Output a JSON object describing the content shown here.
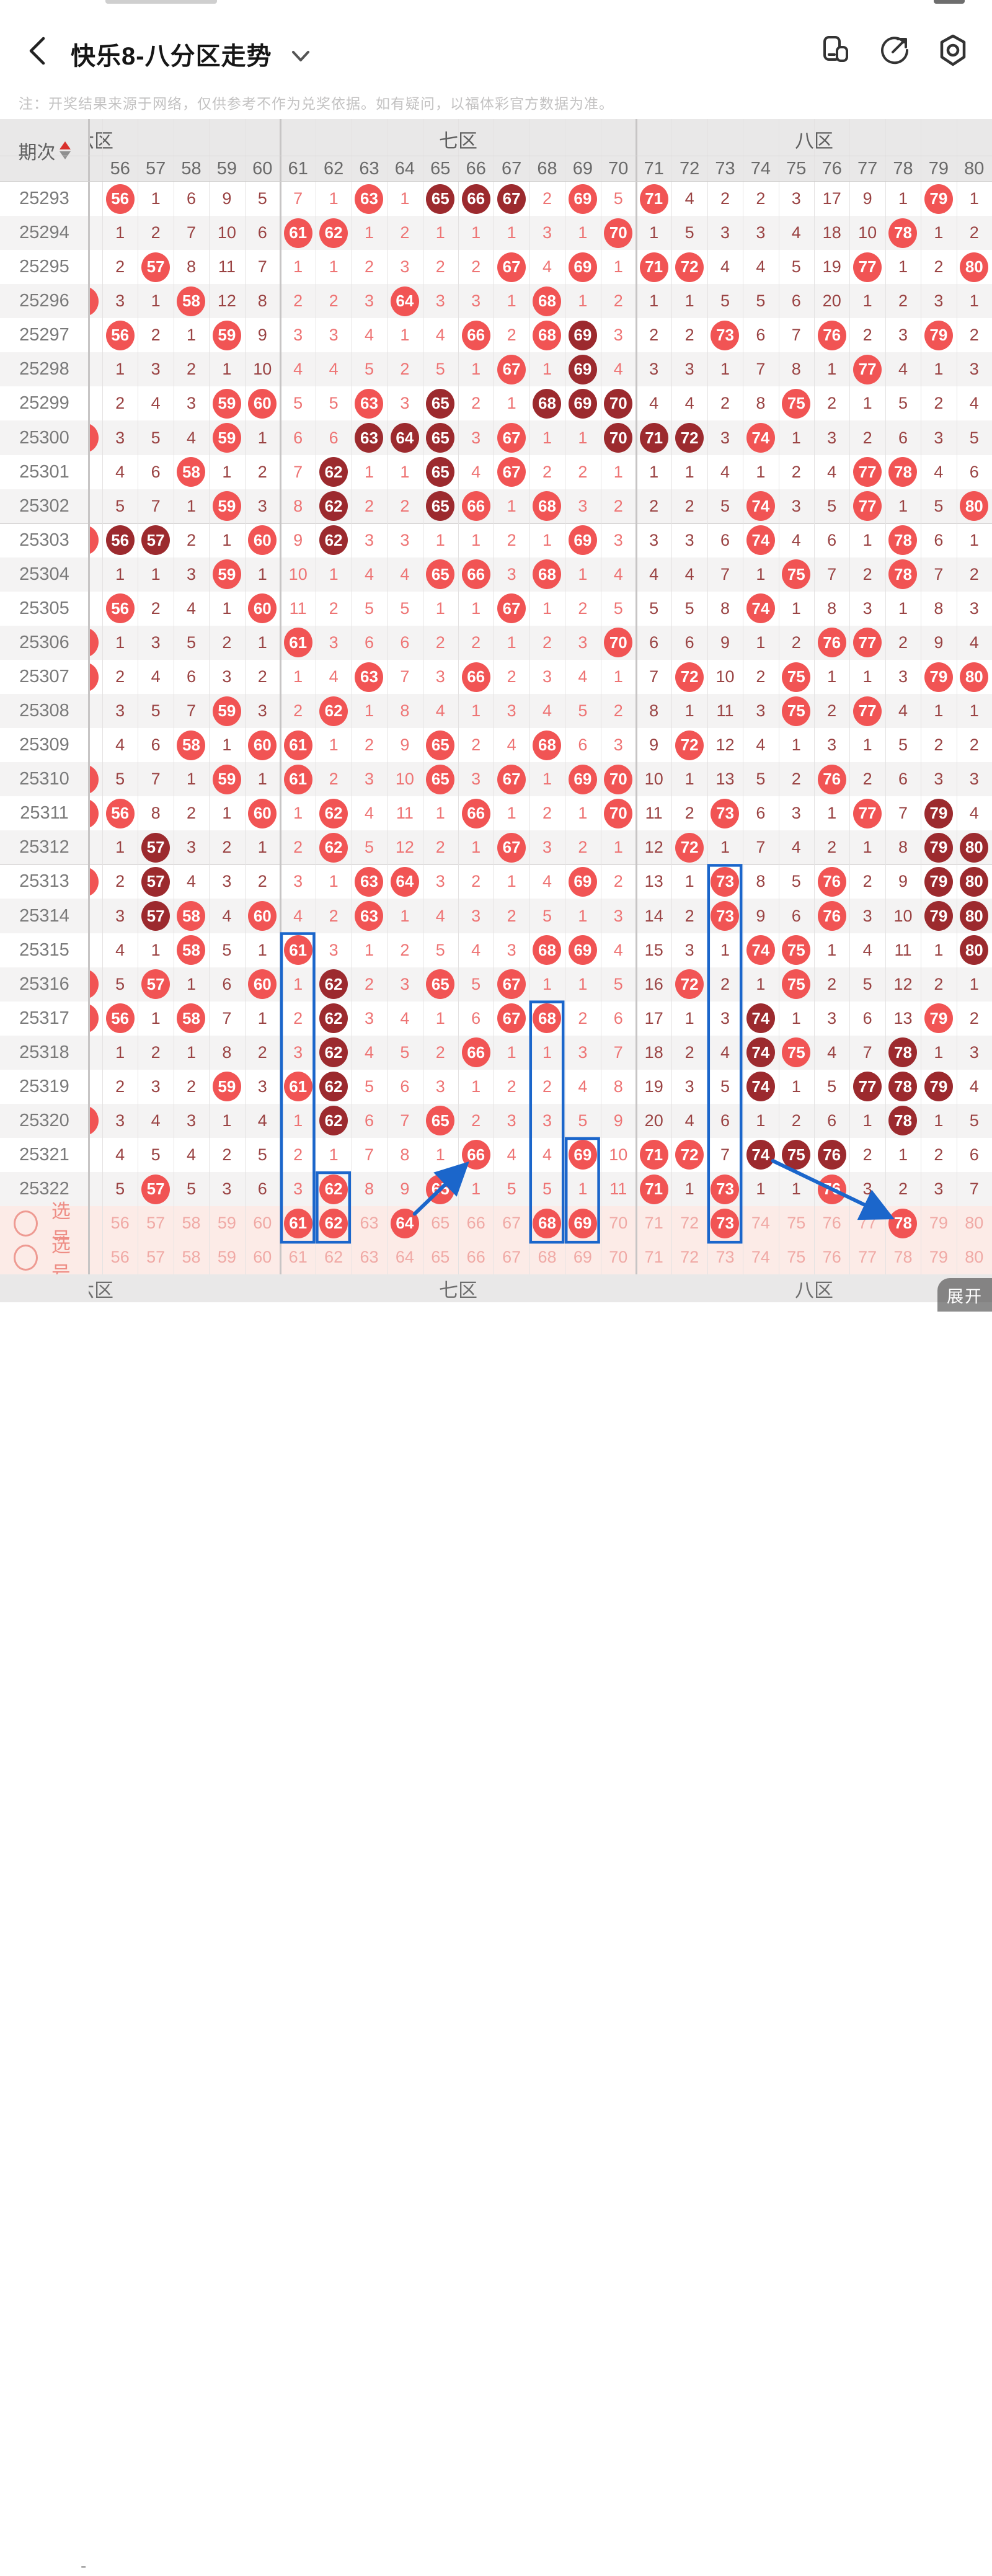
{
  "app": {
    "title": "快乐8-八分区走势",
    "note": "注：开奖结果来源于网络，仅供参考不作为兑奖依据。如有疑问，以福体彩官方数据为准。",
    "expand_label": "展开",
    "icons": {
      "left": "back-chevron",
      "title_caret": "chevron-down",
      "right": [
        "floating-window-icon",
        "share-icon",
        "settings-icon"
      ]
    }
  },
  "colors": {
    "ball_bright": "#f15454",
    "ball_dark": "#9c2a2e",
    "miss_dark_zone": "#9a4343",
    "miss_bright_zone": "#ee7474",
    "annotation_blue": "#1b66cb",
    "selection_pink_bg": "#fcebe7",
    "selection_text": "#ee8d85",
    "header_bg": "#e9e8e8",
    "sort_up_red": "#d9302c"
  },
  "table": {
    "period_header": "期次",
    "columns": [
      56,
      57,
      58,
      59,
      60,
      61,
      62,
      63,
      64,
      65,
      66,
      67,
      68,
      69,
      70,
      71,
      72,
      73,
      74,
      75,
      76,
      77,
      78,
      79,
      80
    ],
    "zones": [
      {
        "label": "六区",
        "from": 56,
        "to": 60,
        "clipped": true
      },
      {
        "label": "七区",
        "from": 61,
        "to": 70,
        "clipped": false
      },
      {
        "label": "八区",
        "from": 71,
        "to": 80,
        "clipped": false
      }
    ],
    "rows": [
      {
        "period": "25293",
        "sliver": false,
        "cells": [
          "B56",
          "1",
          "6",
          "9",
          "5",
          "7",
          "1",
          "B63",
          "1",
          "D65",
          "D66",
          "D67",
          "2",
          "B69",
          "5",
          "B71",
          "4",
          "2",
          "2",
          "3",
          "17",
          "9",
          "1",
          "B79",
          "1"
        ]
      },
      {
        "period": "25294",
        "sliver": false,
        "cells": [
          "1",
          "2",
          "7",
          "10",
          "6",
          "B61",
          "B62",
          "1",
          "2",
          "1",
          "1",
          "1",
          "3",
          "1",
          "B70",
          "1",
          "5",
          "3",
          "3",
          "4",
          "18",
          "10",
          "B78",
          "1",
          "2"
        ]
      },
      {
        "period": "25295",
        "sliver": false,
        "cells": [
          "2",
          "B57",
          "8",
          "11",
          "7",
          "1",
          "1",
          "2",
          "3",
          "2",
          "2",
          "B67",
          "4",
          "B69",
          "1",
          "B71",
          "B72",
          "4",
          "4",
          "5",
          "19",
          "B77",
          "1",
          "2",
          "B80"
        ]
      },
      {
        "period": "25296",
        "sliver": true,
        "cells": [
          "3",
          "1",
          "B58",
          "12",
          "8",
          "2",
          "2",
          "3",
          "B64",
          "3",
          "3",
          "1",
          "B68",
          "1",
          "2",
          "1",
          "1",
          "5",
          "5",
          "6",
          "20",
          "1",
          "2",
          "3",
          "1"
        ]
      },
      {
        "period": "25297",
        "sliver": false,
        "cells": [
          "B56",
          "2",
          "1",
          "B59",
          "9",
          "3",
          "3",
          "4",
          "1",
          "4",
          "B66",
          "2",
          "B68",
          "D69",
          "3",
          "2",
          "2",
          "B73",
          "6",
          "7",
          "B76",
          "2",
          "3",
          "B79",
          "2"
        ]
      },
      {
        "period": "25298",
        "sliver": false,
        "cells": [
          "1",
          "3",
          "2",
          "1",
          "10",
          "4",
          "4",
          "5",
          "2",
          "5",
          "1",
          "B67",
          "1",
          "D69",
          "4",
          "3",
          "3",
          "1",
          "7",
          "8",
          "1",
          "B77",
          "4",
          "1",
          "3"
        ]
      },
      {
        "period": "25299",
        "sliver": false,
        "cells": [
          "2",
          "4",
          "3",
          "B59",
          "B60",
          "5",
          "5",
          "B63",
          "3",
          "D65",
          "2",
          "1",
          "D68",
          "D69",
          "D70",
          "4",
          "4",
          "2",
          "8",
          "B75",
          "2",
          "1",
          "5",
          "2",
          "4"
        ]
      },
      {
        "period": "25300",
        "sliver": true,
        "cells": [
          "3",
          "5",
          "4",
          "B59",
          "1",
          "6",
          "6",
          "D63",
          "D64",
          "D65",
          "3",
          "B67",
          "1",
          "1",
          "D70",
          "D71",
          "D72",
          "3",
          "B74",
          "1",
          "3",
          "2",
          "6",
          "3",
          "5"
        ]
      },
      {
        "period": "25301",
        "sliver": false,
        "cells": [
          "4",
          "6",
          "B58",
          "1",
          "2",
          "7",
          "D62",
          "1",
          "1",
          "D65",
          "4",
          "B67",
          "2",
          "2",
          "1",
          "1",
          "1",
          "4",
          "1",
          "2",
          "4",
          "B77",
          "B78",
          "4",
          "6"
        ]
      },
      {
        "period": "25302",
        "sliver": false,
        "cells": [
          "5",
          "7",
          "1",
          "B59",
          "3",
          "8",
          "D62",
          "2",
          "2",
          "D65",
          "B66",
          "1",
          "B68",
          "3",
          "2",
          "2",
          "2",
          "5",
          "B74",
          "3",
          "5",
          "B77",
          "1",
          "5",
          "B80"
        ]
      },
      {
        "period": "25303",
        "sliver": true,
        "cells": [
          "D56",
          "D57",
          "2",
          "1",
          "B60",
          "9",
          "D62",
          "3",
          "3",
          "1",
          "1",
          "2",
          "1",
          "B69",
          "3",
          "3",
          "3",
          "6",
          "B74",
          "4",
          "6",
          "1",
          "B78",
          "6",
          "1"
        ]
      },
      {
        "period": "25304",
        "sliver": false,
        "cells": [
          "1",
          "1",
          "3",
          "B59",
          "1",
          "10",
          "1",
          "4",
          "4",
          "B65",
          "B66",
          "3",
          "B68",
          "1",
          "4",
          "4",
          "4",
          "7",
          "1",
          "B75",
          "7",
          "2",
          "B78",
          "7",
          "2"
        ]
      },
      {
        "period": "25305",
        "sliver": false,
        "cells": [
          "B56",
          "2",
          "4",
          "1",
          "B60",
          "11",
          "2",
          "5",
          "5",
          "1",
          "1",
          "B67",
          "1",
          "2",
          "5",
          "5",
          "5",
          "8",
          "B74",
          "1",
          "8",
          "3",
          "1",
          "8",
          "3"
        ]
      },
      {
        "period": "25306",
        "sliver": true,
        "cells": [
          "1",
          "3",
          "5",
          "2",
          "1",
          "B61",
          "3",
          "6",
          "6",
          "2",
          "2",
          "1",
          "2",
          "3",
          "B70",
          "6",
          "6",
          "9",
          "1",
          "2",
          "B76",
          "B77",
          "2",
          "9",
          "4"
        ]
      },
      {
        "period": "25307",
        "sliver": true,
        "cells": [
          "2",
          "4",
          "6",
          "3",
          "2",
          "1",
          "4",
          "B63",
          "7",
          "3",
          "B66",
          "2",
          "3",
          "4",
          "1",
          "7",
          "B72",
          "10",
          "2",
          "B75",
          "1",
          "1",
          "3",
          "B79",
          "B80"
        ]
      },
      {
        "period": "25308",
        "sliver": false,
        "cells": [
          "3",
          "5",
          "7",
          "B59",
          "3",
          "2",
          "B62",
          "1",
          "8",
          "4",
          "1",
          "3",
          "4",
          "5",
          "2",
          "8",
          "1",
          "11",
          "3",
          "B75",
          "2",
          "B77",
          "4",
          "1",
          "1"
        ]
      },
      {
        "period": "25309",
        "sliver": false,
        "cells": [
          "4",
          "6",
          "B58",
          "1",
          "B60",
          "B61",
          "1",
          "2",
          "9",
          "B65",
          "2",
          "4",
          "B68",
          "6",
          "3",
          "9",
          "B72",
          "12",
          "4",
          "1",
          "3",
          "1",
          "5",
          "2",
          "2"
        ]
      },
      {
        "period": "25310",
        "sliver": true,
        "cells": [
          "5",
          "7",
          "1",
          "B59",
          "1",
          "B61",
          "2",
          "3",
          "10",
          "B65",
          "3",
          "B67",
          "1",
          "B69",
          "B70",
          "10",
          "1",
          "13",
          "5",
          "2",
          "B76",
          "2",
          "6",
          "3",
          "3"
        ]
      },
      {
        "period": "25311",
        "sliver": true,
        "cells": [
          "B56",
          "8",
          "2",
          "1",
          "B60",
          "1",
          "B62",
          "4",
          "11",
          "1",
          "B66",
          "1",
          "2",
          "1",
          "B70",
          "11",
          "2",
          "B73",
          "6",
          "3",
          "1",
          "B77",
          "7",
          "D79",
          "4"
        ]
      },
      {
        "period": "25312",
        "sliver": false,
        "cells": [
          "1",
          "D57",
          "3",
          "2",
          "1",
          "2",
          "B62",
          "5",
          "12",
          "2",
          "1",
          "B67",
          "3",
          "2",
          "1",
          "12",
          "B72",
          "1",
          "7",
          "4",
          "2",
          "1",
          "8",
          "D79",
          "D80"
        ]
      },
      {
        "period": "25313",
        "sliver": true,
        "cells": [
          "2",
          "D57",
          "4",
          "3",
          "2",
          "3",
          "1",
          "B63",
          "B64",
          "3",
          "2",
          "1",
          "4",
          "B69",
          "2",
          "13",
          "1",
          "B73",
          "8",
          "5",
          "B76",
          "2",
          "9",
          "D79",
          "D80"
        ]
      },
      {
        "period": "25314",
        "sliver": false,
        "cells": [
          "3",
          "D57",
          "B58",
          "4",
          "B60",
          "4",
          "2",
          "B63",
          "1",
          "4",
          "3",
          "2",
          "5",
          "1",
          "3",
          "14",
          "2",
          "B73",
          "9",
          "6",
          "B76",
          "3",
          "10",
          "D79",
          "D80"
        ]
      },
      {
        "period": "25315",
        "sliver": false,
        "cells": [
          "4",
          "1",
          "B58",
          "5",
          "1",
          "B61",
          "3",
          "1",
          "2",
          "5",
          "4",
          "3",
          "B68",
          "B69",
          "4",
          "15",
          "3",
          "1",
          "B74",
          "B75",
          "1",
          "4",
          "11",
          "1",
          "D80"
        ]
      },
      {
        "period": "25316",
        "sliver": true,
        "cells": [
          "5",
          "B57",
          "1",
          "6",
          "B60",
          "1",
          "D62",
          "2",
          "3",
          "B65",
          "5",
          "B67",
          "1",
          "1",
          "5",
          "16",
          "B72",
          "2",
          "1",
          "B75",
          "2",
          "5",
          "12",
          "2",
          "1"
        ]
      },
      {
        "period": "25317",
        "sliver": true,
        "cells": [
          "B56",
          "1",
          "B58",
          "7",
          "1",
          "2",
          "D62",
          "3",
          "4",
          "1",
          "6",
          "B67",
          "B68",
          "2",
          "6",
          "17",
          "1",
          "3",
          "D74",
          "1",
          "3",
          "6",
          "13",
          "B79",
          "2"
        ]
      },
      {
        "period": "25318",
        "sliver": false,
        "cells": [
          "1",
          "2",
          "1",
          "8",
          "2",
          "3",
          "D62",
          "4",
          "5",
          "2",
          "B66",
          "1",
          "1",
          "3",
          "7",
          "18",
          "2",
          "4",
          "D74",
          "B75",
          "4",
          "7",
          "D78",
          "1",
          "3"
        ]
      },
      {
        "period": "25319",
        "sliver": false,
        "cells": [
          "2",
          "3",
          "2",
          "B59",
          "3",
          "B61",
          "D62",
          "5",
          "6",
          "3",
          "1",
          "2",
          "2",
          "4",
          "8",
          "19",
          "3",
          "5",
          "D74",
          "1",
          "5",
          "D77",
          "D78",
          "D79",
          "4"
        ]
      },
      {
        "period": "25320",
        "sliver": true,
        "cells": [
          "3",
          "4",
          "3",
          "1",
          "4",
          "1",
          "D62",
          "6",
          "7",
          "B65",
          "2",
          "3",
          "3",
          "5",
          "9",
          "20",
          "4",
          "6",
          "1",
          "2",
          "6",
          "1",
          "D78",
          "1",
          "5"
        ]
      },
      {
        "period": "25321",
        "sliver": false,
        "cells": [
          "4",
          "5",
          "4",
          "2",
          "5",
          "2",
          "1",
          "7",
          "8",
          "1",
          "B66",
          "4",
          "4",
          "B69",
          "10",
          "B71",
          "B72",
          "7",
          "D74",
          "D75",
          "D76",
          "2",
          "1",
          "2",
          "6"
        ]
      },
      {
        "period": "25322",
        "sliver": false,
        "cells": [
          "5",
          "B57",
          "5",
          "3",
          "6",
          "3",
          "B62",
          "8",
          "9",
          "B65",
          "1",
          "5",
          "5",
          "1",
          "11",
          "B71",
          "1",
          "B73",
          "1",
          "1",
          "B76",
          "3",
          "2",
          "3",
          "7"
        ]
      }
    ],
    "selection_rows": [
      {
        "label": "选号",
        "selected": [
          61,
          62,
          64,
          68,
          69,
          73,
          78
        ]
      },
      {
        "label": "选号",
        "selected": []
      }
    ],
    "footer_zones": [
      "六区",
      "七区",
      "八区"
    ],
    "footer_dash": "-"
  },
  "annotations": {
    "boxes": [
      {
        "col": 61,
        "from_row": 22
      },
      {
        "col": 62,
        "from_row": 29
      },
      {
        "col": 68,
        "from_row": 24
      },
      {
        "col": 69,
        "from_row": 28
      },
      {
        "col": 73,
        "from_row": 20
      }
    ],
    "arrows": [
      {
        "from_col": 64,
        "from_row": 30,
        "to_col": 66,
        "to_row": 28
      },
      {
        "from_col": 74,
        "from_row": 28,
        "to_col": 78,
        "to_row": 30
      }
    ]
  }
}
